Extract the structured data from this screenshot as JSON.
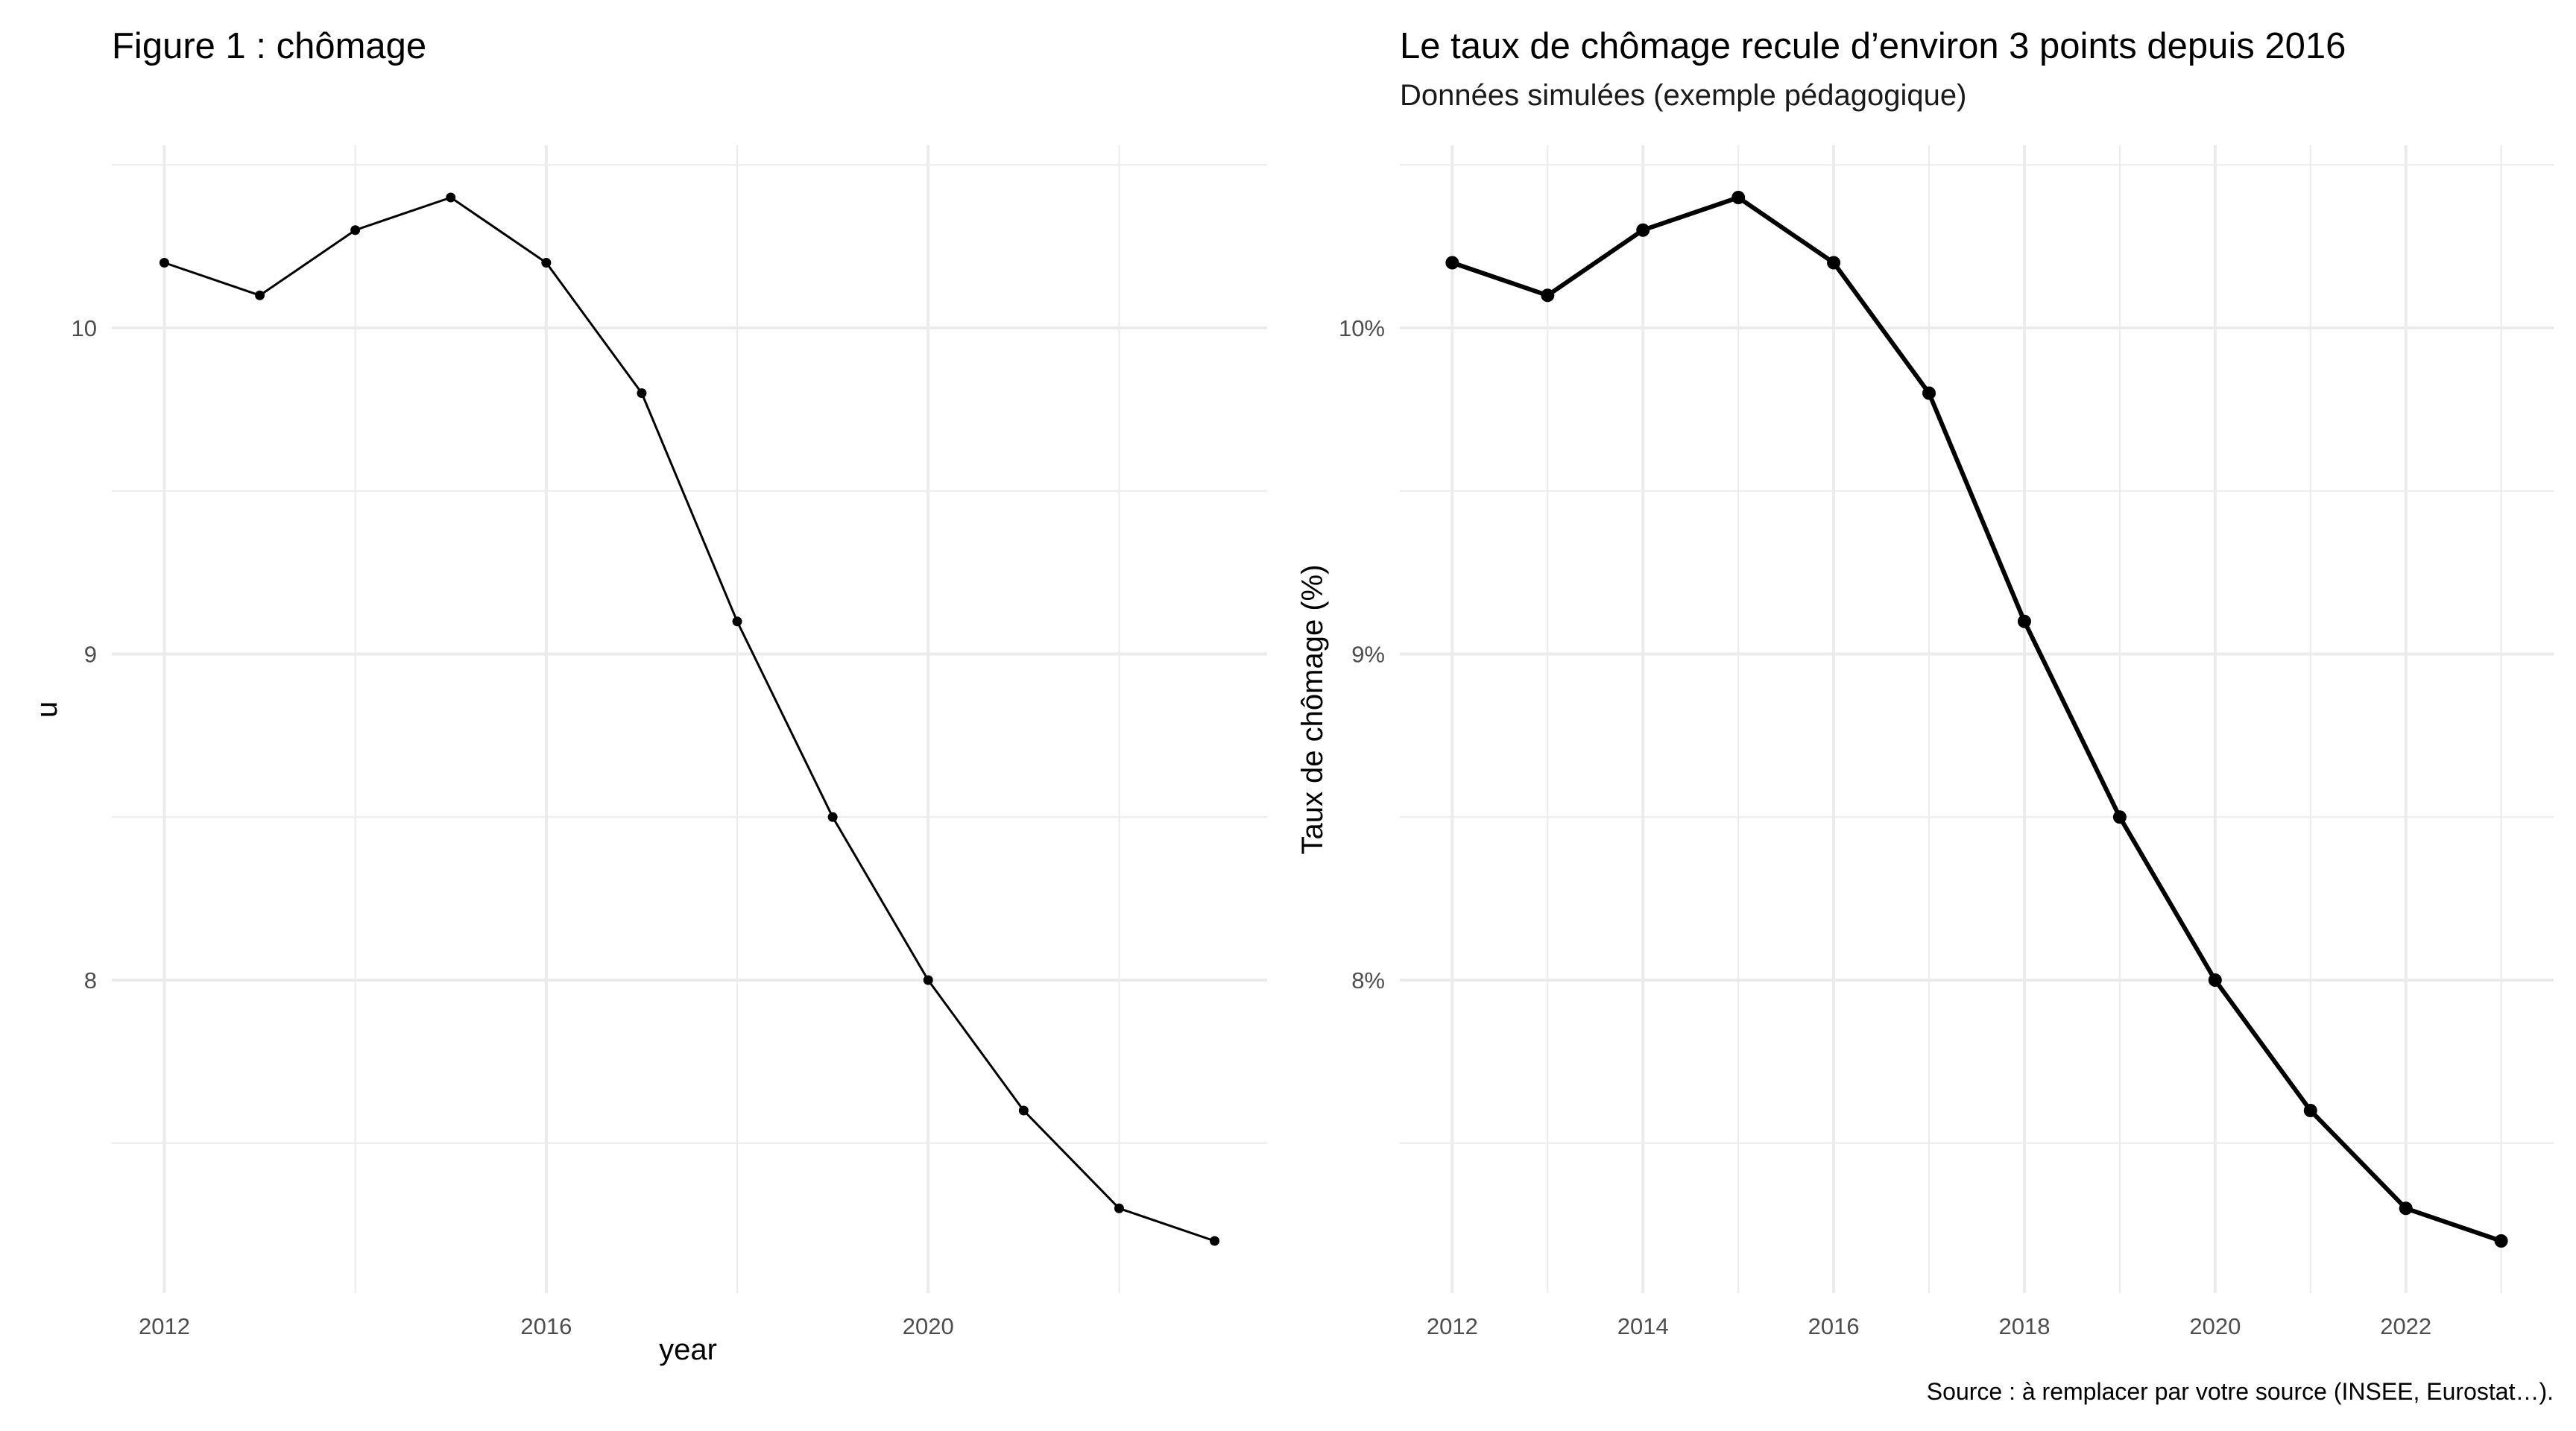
{
  "chart_data": [
    {
      "type": "line",
      "title": "Figure 1 : chômage",
      "subtitle": "",
      "xlabel": "year",
      "ylabel": "u",
      "x": [
        2012,
        2013,
        2014,
        2015,
        2016,
        2017,
        2018,
        2019,
        2020,
        2021,
        2022,
        2023
      ],
      "series": [
        {
          "values": [
            10.2,
            10.1,
            10.3,
            10.4,
            10.2,
            9.8,
            9.1,
            8.5,
            8.0,
            7.6,
            7.3,
            7.2
          ]
        }
      ],
      "xticks": [
        2012,
        2016,
        2020
      ],
      "xtick_labels": [
        "2012",
        "2016",
        "2020"
      ],
      "x_minor_ticks": [
        2014,
        2018,
        2022
      ],
      "yticks": [
        8,
        9,
        10
      ],
      "ytick_labels": [
        "8",
        "9",
        "10"
      ],
      "y_minor_ticks": [
        7.5,
        8.5,
        9.5,
        10.5
      ],
      "xlim": [
        2011.45,
        2023.55
      ],
      "ylim": [
        7.04,
        10.56
      ],
      "grid": true,
      "color": "#000000",
      "line_style": "thin",
      "markers": true
    },
    {
      "type": "line",
      "title": "Le taux de chômage recule d’environ 3 points depuis 2016",
      "subtitle": "Données simulées (exemple pédagogique)",
      "xlabel": "",
      "ylabel": "Taux de chômage (%)",
      "caption": "Source : à remplacer par votre source (INSEE, Eurostat…).",
      "x": [
        2012,
        2013,
        2014,
        2015,
        2016,
        2017,
        2018,
        2019,
        2020,
        2021,
        2022,
        2023
      ],
      "series": [
        {
          "values": [
            10.2,
            10.1,
            10.3,
            10.4,
            10.2,
            9.8,
            9.1,
            8.5,
            8.0,
            7.6,
            7.3,
            7.2
          ]
        }
      ],
      "xticks": [
        2012,
        2014,
        2016,
        2018,
        2020,
        2022
      ],
      "xtick_labels": [
        "2012",
        "2014",
        "2016",
        "2018",
        "2020",
        "2022"
      ],
      "x_minor_ticks": [
        2013,
        2015,
        2017,
        2019,
        2021,
        2023
      ],
      "yticks": [
        8,
        9,
        10
      ],
      "ytick_labels": [
        "8%",
        "9%",
        "10%"
      ],
      "y_minor_ticks": [
        7.5,
        8.5,
        9.5,
        10.5
      ],
      "xlim": [
        2011.45,
        2023.55
      ],
      "ylim": [
        7.04,
        10.56
      ],
      "grid": true,
      "color": "#000000",
      "line_style": "thick",
      "markers": true
    }
  ]
}
